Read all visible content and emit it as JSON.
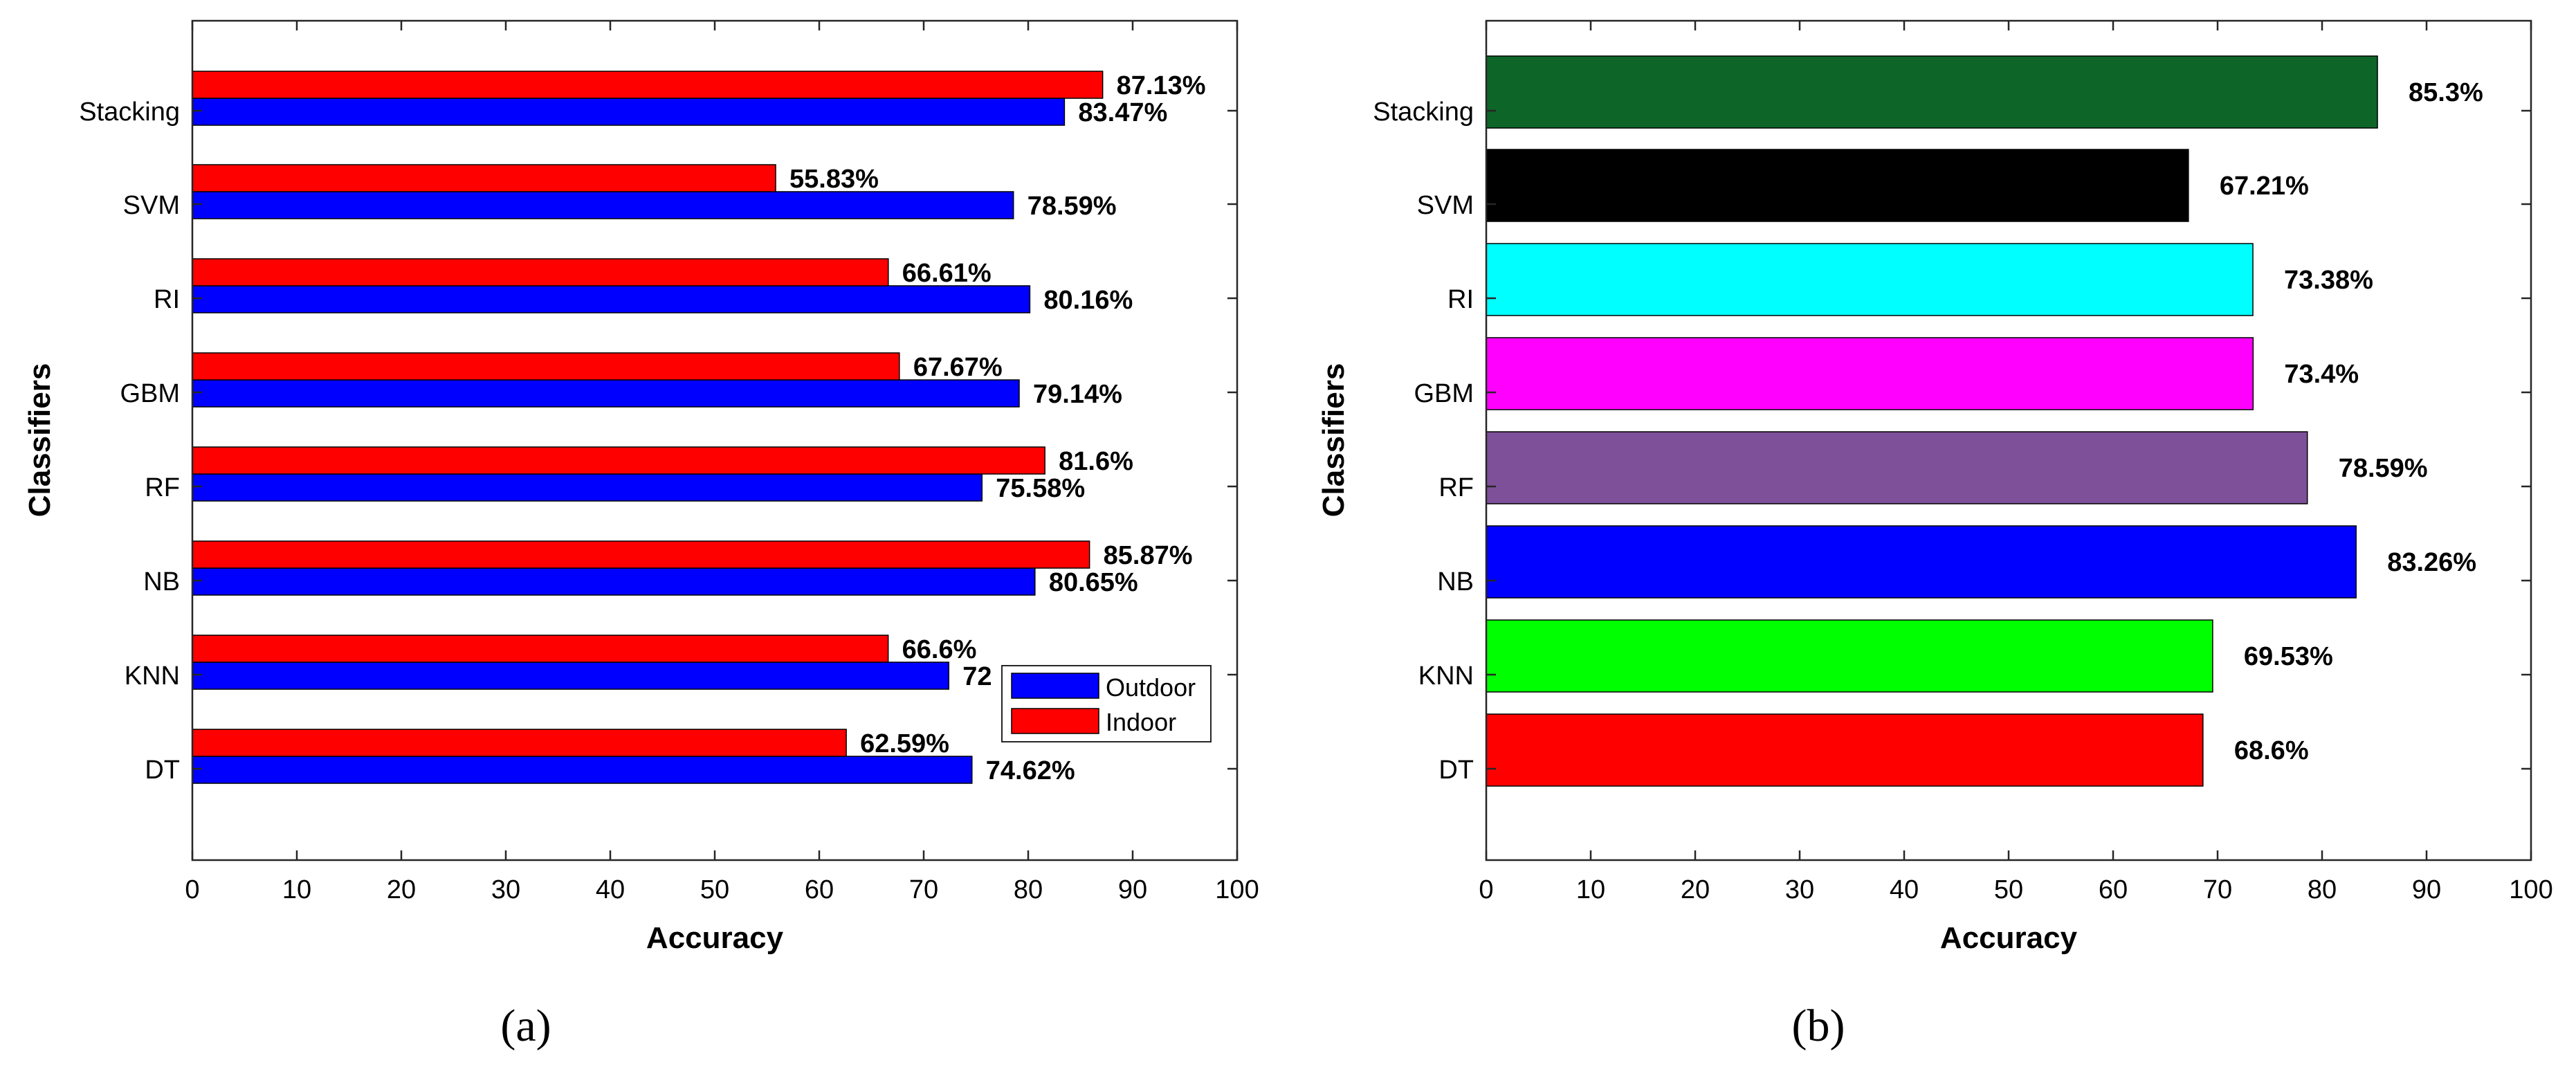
{
  "chart_data": [
    {
      "type": "bar",
      "orientation": "horizontal",
      "panel_label": "(a)",
      "categories": [
        "DT",
        "KNN",
        "NB",
        "RF",
        "GBM",
        "RI",
        "SVM",
        "Stacking"
      ],
      "series": [
        {
          "name": "Outdoor",
          "color": "#0000ff",
          "values": [
            74.62,
            72.4,
            80.65,
            75.58,
            79.14,
            80.16,
            78.59,
            83.47
          ],
          "labels": [
            "74.62%",
            "72",
            "80.65%",
            "75.58%",
            "79.14%",
            "80.16%",
            "78.59%",
            "83.47%"
          ]
        },
        {
          "name": "Indoor",
          "color": "#ff0000",
          "values": [
            62.59,
            66.6,
            85.87,
            81.6,
            67.67,
            66.61,
            55.83,
            87.13
          ],
          "labels": [
            "62.59%",
            "66.6%",
            "85.87%",
            "81.6%",
            "67.67%",
            "66.61%",
            "55.83%",
            "87.13%"
          ]
        }
      ],
      "xlabel": "Accuracy",
      "ylabel": "Classifiers",
      "xlim": [
        0,
        100
      ],
      "xticks": [
        "0",
        "10",
        "20",
        "30",
        "40",
        "50",
        "60",
        "70",
        "80",
        "90",
        "100"
      ],
      "grid": false,
      "legend": "bottom-right"
    },
    {
      "type": "bar",
      "orientation": "horizontal",
      "panel_label": "(b)",
      "categories": [
        "DT",
        "KNN",
        "NB",
        "RF",
        "GBM",
        "RI",
        "SVM",
        "Stacking"
      ],
      "values": [
        68.6,
        69.53,
        83.26,
        78.59,
        73.4,
        73.38,
        67.21,
        85.3
      ],
      "labels": [
        "68.6%",
        "69.53%",
        "83.26%",
        "78.59%",
        "73.4%",
        "73.38%",
        "67.21%",
        "85.3%"
      ],
      "colors": [
        "#ff0000",
        "#00ff00",
        "#0000ff",
        "#7e509a",
        "#ff00ff",
        "#00ffff",
        "#000000",
        "#0d6628"
      ],
      "xlabel": "Accuracy",
      "ylabel": "Classifiers",
      "xlim": [
        0,
        100
      ],
      "xticks": [
        "0",
        "10",
        "20",
        "30",
        "40",
        "50",
        "60",
        "70",
        "80",
        "90",
        "100"
      ],
      "grid": false
    }
  ]
}
